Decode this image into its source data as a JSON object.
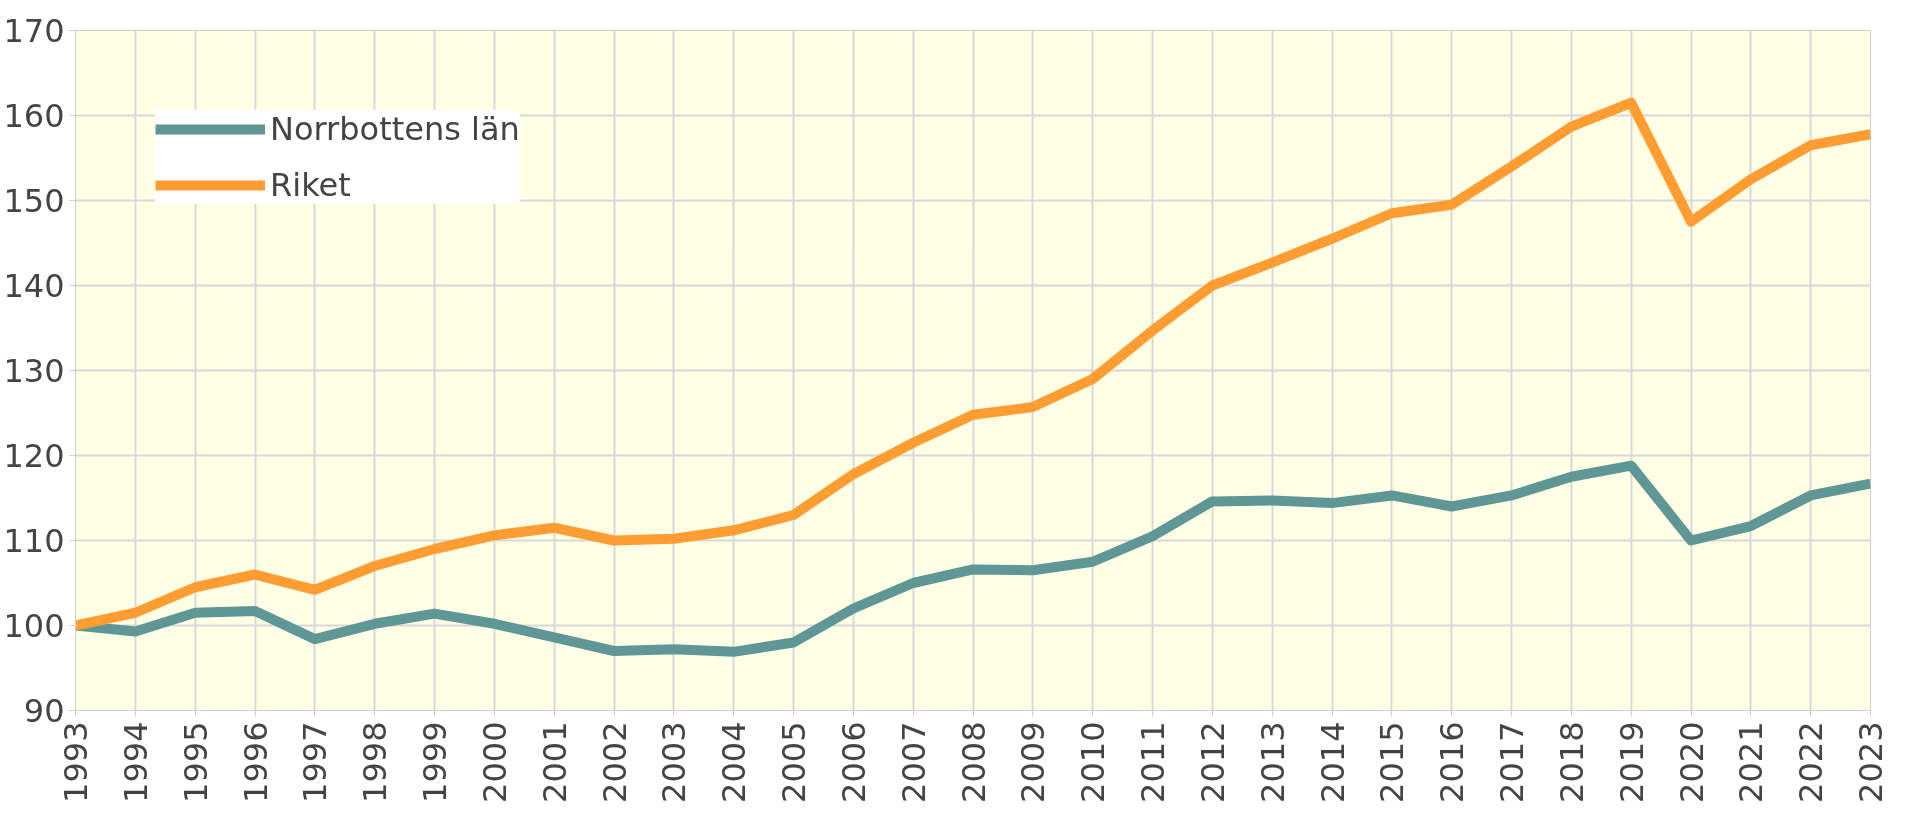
{
  "chart_data": {
    "type": "line",
    "x": [
      1993,
      1994,
      1995,
      1996,
      1997,
      1998,
      1999,
      2000,
      2001,
      2002,
      2003,
      2004,
      2005,
      2006,
      2007,
      2008,
      2009,
      2010,
      2011,
      2012,
      2013,
      2014,
      2015,
      2016,
      2017,
      2018,
      2019,
      2020,
      2021,
      2022,
      2023
    ],
    "series": [
      {
        "name": "Norrbottens län",
        "color": "#5f9696",
        "values": [
          100,
          99.3,
          101.5,
          101.7,
          98.4,
          100.2,
          101.4,
          100.2,
          98.6,
          97,
          97.2,
          96.9,
          98,
          102,
          105,
          106.6,
          106.5,
          107.5,
          110.5,
          114.6,
          114.7,
          114.4,
          115.3,
          114,
          115.3,
          117.5,
          118.8,
          110,
          111.7,
          115.3,
          116.7
        ]
      },
      {
        "name": "Riket",
        "color": "#ff9d33",
        "values": [
          100,
          101.5,
          104.5,
          106,
          104.2,
          107,
          109,
          110.6,
          111.5,
          110,
          110.2,
          111.2,
          113,
          117.8,
          121.5,
          124.8,
          125.7,
          129,
          134.7,
          140,
          142.7,
          145.5,
          148.5,
          149.5,
          154,
          158.7,
          161.5,
          147.5,
          152.5,
          156.5,
          157.8
        ]
      }
    ],
    "xlim": [
      1993,
      2023
    ],
    "xticks": [
      1993,
      1994,
      1995,
      1996,
      1997,
      1998,
      1999,
      2000,
      2001,
      2002,
      2003,
      2004,
      2005,
      2006,
      2007,
      2008,
      2009,
      2010,
      2011,
      2012,
      2013,
      2014,
      2015,
      2016,
      2017,
      2018,
      2019,
      2020,
      2021,
      2022,
      2023
    ],
    "ylim": [
      90,
      170
    ],
    "yticks": [
      90,
      100,
      110,
      120,
      130,
      140,
      150,
      160,
      170
    ],
    "grid": true,
    "legend": "top left",
    "marker": "none",
    "line_style": "solid"
  }
}
